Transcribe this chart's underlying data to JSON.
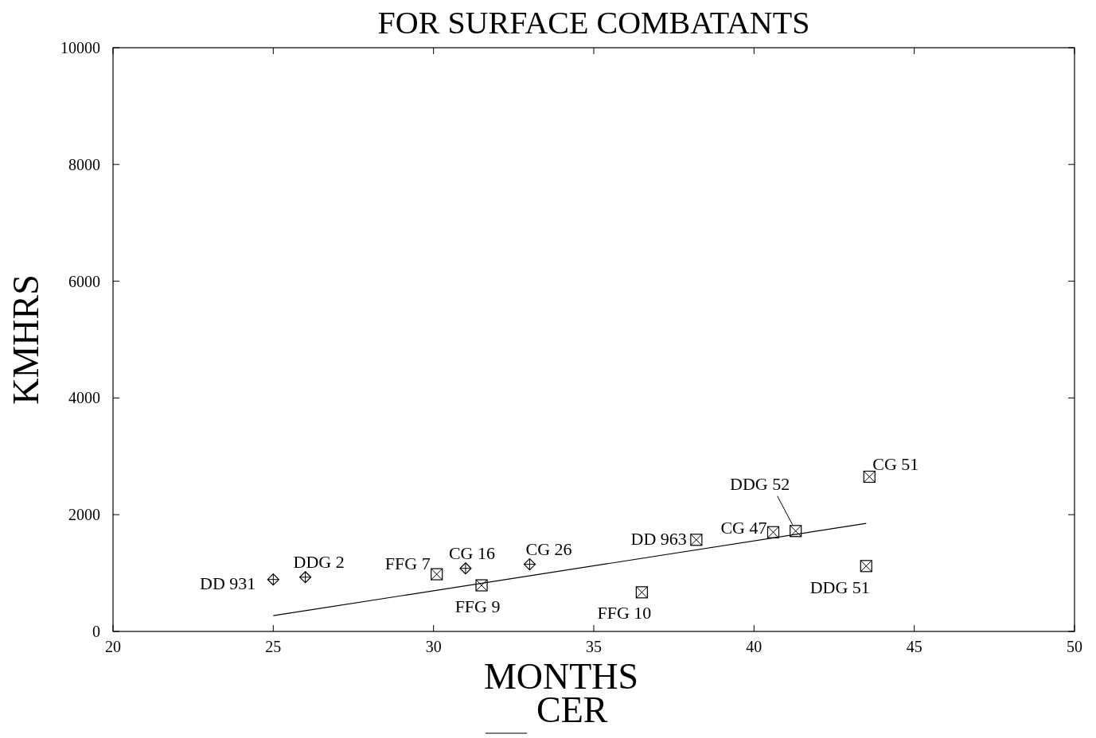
{
  "chart_data": {
    "type": "scatter",
    "title": "FOR SURFACE COMBATANTS",
    "xlabel": "MONTHS",
    "ylabel": "KMHRS",
    "xlim": [
      20,
      50
    ],
    "ylim": [
      0,
      10000
    ],
    "xticks": [
      20,
      25,
      30,
      35,
      40,
      45,
      50
    ],
    "yticks": [
      0,
      2000,
      4000,
      6000,
      8000,
      10000
    ],
    "grid": false,
    "legend": "bottom",
    "series": [
      {
        "marker": "diamond",
        "color": "#000000",
        "x": [
          25,
          26,
          31,
          33
        ],
        "values": [
          890,
          930,
          1080,
          1150
        ]
      },
      {
        "marker": "square",
        "color": "#000000",
        "x": [
          30.1,
          31.5,
          36.5,
          38.2,
          40.6,
          41.3,
          43.5,
          43.6
        ],
        "values": [
          980,
          790,
          670,
          1570,
          1700,
          1720,
          1120,
          2650
        ]
      },
      {
        "type": "line",
        "name": "CER",
        "color": "#000000",
        "marker": "none",
        "line_style": "solid",
        "x": [
          25,
          43.5
        ],
        "values": [
          270,
          1850
        ]
      }
    ],
    "annotations": [
      {
        "text": "DD 931",
        "x": 25,
        "y": 890
      },
      {
        "text": "DDG 2",
        "x": 26,
        "y": 930
      },
      {
        "text": "FFG 7",
        "x": 30.1,
        "y": 980
      },
      {
        "text": "CG 16",
        "x": 31,
        "y": 1080
      },
      {
        "text": "FFG 9",
        "x": 31.5,
        "y": 790
      },
      {
        "text": "CG 26",
        "x": 33,
        "y": 1150
      },
      {
        "text": "FFG 10",
        "x": 36.5,
        "y": 670
      },
      {
        "text": "DD 963",
        "x": 38.2,
        "y": 1570
      },
      {
        "text": "CG 47",
        "x": 40.6,
        "y": 1700
      },
      {
        "text": "DDG 52",
        "x": 41.3,
        "y": 1720
      },
      {
        "text": "DDG 51",
        "x": 43.5,
        "y": 1120
      },
      {
        "text": "CG 51",
        "x": 43.6,
        "y": 2650
      }
    ]
  }
}
